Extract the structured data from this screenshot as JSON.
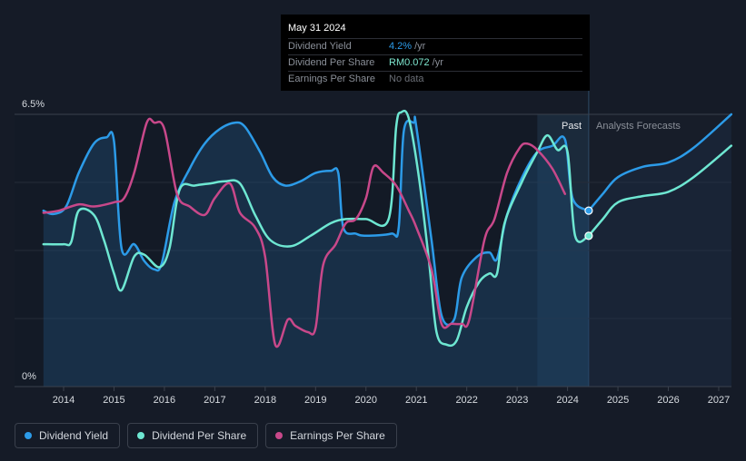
{
  "tooltip": {
    "date": "May 31 2024",
    "rows": [
      {
        "label": "Dividend Yield",
        "value": "4.2%",
        "unit": "/yr"
      },
      {
        "label": "Dividend Per Share",
        "value": "RM0.072",
        "unit": "/yr"
      },
      {
        "label": "Earnings Per Share",
        "value": "No data",
        "unit": ""
      }
    ]
  },
  "regions": {
    "past": "Past",
    "forecast": "Analysts Forecasts"
  },
  "legend": [
    {
      "label": "Dividend Yield",
      "color": "#2c9be8"
    },
    {
      "label": "Dividend Per Share",
      "color": "#6ee7d2"
    },
    {
      "label": "Earnings Per Share",
      "color": "#c8488a"
    }
  ],
  "chart_data": {
    "type": "line",
    "y_tick_labels": {
      "top": "6.5%",
      "bottom": "0%"
    },
    "ylim": [
      0,
      6.5
    ],
    "xlim": [
      2013.6,
      2027.25
    ],
    "x_ticks": [
      "2014",
      "2015",
      "2016",
      "2017",
      "2018",
      "2019",
      "2020",
      "2021",
      "2022",
      "2023",
      "2024",
      "2025",
      "2026",
      "2027"
    ],
    "past_region_start": 2023.4,
    "forecast_start": 2024.42,
    "series": [
      {
        "name": "Dividend Yield",
        "color": "#2c9be8",
        "area": true,
        "points": [
          [
            2013.6,
            4.2
          ],
          [
            2013.8,
            4.12
          ],
          [
            2014.05,
            4.3
          ],
          [
            2014.3,
            5.1
          ],
          [
            2014.6,
            5.8
          ],
          [
            2014.85,
            5.95
          ],
          [
            2015.0,
            5.85
          ],
          [
            2015.15,
            3.3
          ],
          [
            2015.4,
            3.4
          ],
          [
            2015.6,
            3.0
          ],
          [
            2015.8,
            2.8
          ],
          [
            2015.95,
            2.95
          ],
          [
            2016.2,
            4.4
          ],
          [
            2016.5,
            5.2
          ],
          [
            2016.8,
            5.8
          ],
          [
            2017.1,
            6.15
          ],
          [
            2017.4,
            6.3
          ],
          [
            2017.6,
            6.2
          ],
          [
            2017.9,
            5.6
          ],
          [
            2018.15,
            5.0
          ],
          [
            2018.4,
            4.8
          ],
          [
            2018.7,
            4.9
          ],
          [
            2019.0,
            5.1
          ],
          [
            2019.3,
            5.15
          ],
          [
            2019.45,
            5.1
          ],
          [
            2019.55,
            3.8
          ],
          [
            2019.8,
            3.65
          ],
          [
            2020.0,
            3.6
          ],
          [
            2020.5,
            3.65
          ],
          [
            2020.65,
            3.8
          ],
          [
            2020.75,
            6.1
          ],
          [
            2020.95,
            6.3
          ],
          [
            2021.0,
            6.2
          ],
          [
            2021.3,
            3.5
          ],
          [
            2021.5,
            1.7
          ],
          [
            2021.75,
            1.6
          ],
          [
            2021.9,
            2.6
          ],
          [
            2022.2,
            3.1
          ],
          [
            2022.45,
            3.2
          ],
          [
            2022.6,
            3.05
          ],
          [
            2022.8,
            4.1
          ],
          [
            2023.1,
            5.0
          ],
          [
            2023.4,
            5.6
          ],
          [
            2023.7,
            5.75
          ],
          [
            2023.95,
            5.9
          ],
          [
            2024.1,
            4.5
          ],
          [
            2024.42,
            4.2
          ]
        ]
      },
      {
        "name": "Dividend Yield Forecast",
        "color": "#2c9be8",
        "points": [
          [
            2024.42,
            4.2
          ],
          [
            2024.7,
            4.6
          ],
          [
            2025.0,
            5.0
          ],
          [
            2025.5,
            5.25
          ],
          [
            2026.0,
            5.35
          ],
          [
            2026.5,
            5.7
          ],
          [
            2027.25,
            6.5
          ]
        ]
      },
      {
        "name": "Dividend Per Share",
        "color": "#6ee7d2",
        "points": [
          [
            2013.6,
            3.4
          ],
          [
            2014.0,
            3.4
          ],
          [
            2014.15,
            3.45
          ],
          [
            2014.3,
            4.2
          ],
          [
            2014.6,
            4.1
          ],
          [
            2014.8,
            3.5
          ],
          [
            2015.0,
            2.7
          ],
          [
            2015.15,
            2.3
          ],
          [
            2015.4,
            3.1
          ],
          [
            2015.6,
            3.15
          ],
          [
            2015.9,
            2.85
          ],
          [
            2016.1,
            3.3
          ],
          [
            2016.3,
            4.7
          ],
          [
            2016.6,
            4.8
          ],
          [
            2016.9,
            4.85
          ],
          [
            2017.2,
            4.9
          ],
          [
            2017.5,
            4.85
          ],
          [
            2017.8,
            4.1
          ],
          [
            2018.1,
            3.5
          ],
          [
            2018.5,
            3.35
          ],
          [
            2018.9,
            3.6
          ],
          [
            2019.3,
            3.9
          ],
          [
            2019.6,
            4.0
          ],
          [
            2020.0,
            4.0
          ],
          [
            2020.45,
            4.0
          ],
          [
            2020.6,
            6.2
          ],
          [
            2020.7,
            6.55
          ],
          [
            2020.85,
            6.4
          ],
          [
            2021.05,
            5.0
          ],
          [
            2021.25,
            3.0
          ],
          [
            2021.4,
            1.3
          ],
          [
            2021.6,
            1.0
          ],
          [
            2021.8,
            1.1
          ],
          [
            2022.0,
            1.9
          ],
          [
            2022.25,
            2.5
          ],
          [
            2022.45,
            2.7
          ],
          [
            2022.6,
            2.7
          ],
          [
            2022.75,
            3.9
          ],
          [
            2023.1,
            4.9
          ],
          [
            2023.4,
            5.6
          ],
          [
            2023.6,
            6.0
          ],
          [
            2023.8,
            5.65
          ],
          [
            2024.0,
            5.6
          ],
          [
            2024.15,
            3.6
          ],
          [
            2024.42,
            3.6
          ]
        ]
      },
      {
        "name": "Dividend Per Share Forecast",
        "color": "#6ee7d2",
        "points": [
          [
            2024.42,
            3.6
          ],
          [
            2024.7,
            4.0
          ],
          [
            2025.0,
            4.4
          ],
          [
            2025.5,
            4.55
          ],
          [
            2026.0,
            4.65
          ],
          [
            2026.5,
            5.0
          ],
          [
            2027.25,
            5.75
          ]
        ]
      },
      {
        "name": "Earnings Per Share",
        "color": "#c8488a",
        "points": [
          [
            2013.6,
            4.15
          ],
          [
            2013.9,
            4.2
          ],
          [
            2014.3,
            4.35
          ],
          [
            2014.6,
            4.3
          ],
          [
            2015.0,
            4.4
          ],
          [
            2015.2,
            4.5
          ],
          [
            2015.4,
            5.1
          ],
          [
            2015.65,
            6.3
          ],
          [
            2015.8,
            6.3
          ],
          [
            2016.0,
            6.15
          ],
          [
            2016.25,
            4.6
          ],
          [
            2016.5,
            4.3
          ],
          [
            2016.8,
            4.1
          ],
          [
            2017.0,
            4.5
          ],
          [
            2017.3,
            4.85
          ],
          [
            2017.5,
            4.15
          ],
          [
            2017.8,
            3.8
          ],
          [
            2018.0,
            3.1
          ],
          [
            2018.2,
            1.0
          ],
          [
            2018.45,
            1.6
          ],
          [
            2018.6,
            1.45
          ],
          [
            2018.85,
            1.3
          ],
          [
            2019.0,
            1.4
          ],
          [
            2019.15,
            2.9
          ],
          [
            2019.4,
            3.4
          ],
          [
            2019.6,
            3.9
          ],
          [
            2019.8,
            4.0
          ],
          [
            2020.0,
            4.5
          ],
          [
            2020.15,
            5.25
          ],
          [
            2020.35,
            5.1
          ],
          [
            2020.6,
            4.8
          ],
          [
            2020.85,
            4.2
          ],
          [
            2021.0,
            3.8
          ],
          [
            2021.3,
            2.8
          ],
          [
            2021.5,
            1.5
          ],
          [
            2021.7,
            1.5
          ],
          [
            2021.9,
            1.5
          ],
          [
            2022.05,
            1.6
          ],
          [
            2022.35,
            3.5
          ],
          [
            2022.55,
            4.0
          ],
          [
            2022.8,
            5.1
          ],
          [
            2023.05,
            5.7
          ],
          [
            2023.2,
            5.8
          ],
          [
            2023.4,
            5.65
          ],
          [
            2023.7,
            5.2
          ],
          [
            2023.95,
            4.6
          ]
        ]
      }
    ],
    "markers": [
      {
        "series": "Dividend Yield",
        "x": 2024.42,
        "y": 4.2,
        "color": "#2c9be8"
      },
      {
        "series": "Dividend Per Share",
        "x": 2024.42,
        "y": 3.6,
        "color": "#6ee7d2"
      }
    ]
  }
}
